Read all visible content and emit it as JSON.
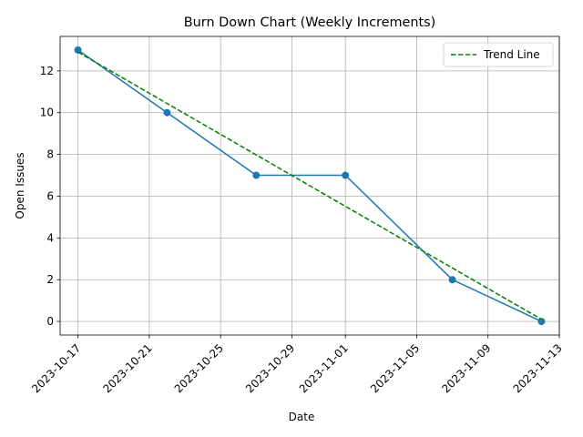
{
  "chart_data": {
    "type": "line",
    "title": "Burn Down Chart (Weekly Increments)",
    "xlabel": "Date",
    "ylabel": "Open Issues",
    "x_type": "date",
    "xlim": [
      "2023-10-16",
      "2023-11-13"
    ],
    "ylim": [
      -0.65,
      13.65
    ],
    "x_ticks": [
      "2023-10-17",
      "2023-10-21",
      "2023-10-25",
      "2023-10-29",
      "2023-11-01",
      "2023-11-05",
      "2023-11-09",
      "2023-11-13"
    ],
    "y_ticks": [
      0,
      2,
      4,
      6,
      8,
      10,
      12
    ],
    "grid": true,
    "legend_position": "top-right",
    "series": [
      {
        "style": "solid-with-markers",
        "color": "#1f77b4",
        "x": [
          "2023-10-17",
          "2023-10-22",
          "2023-10-27",
          "2023-11-01",
          "2023-11-07",
          "2023-11-12"
        ],
        "y": [
          13,
          10,
          7,
          7,
          2,
          0
        ]
      },
      {
        "name": "Trend Line",
        "style": "dashed",
        "color": "#008000",
        "x": [
          "2023-10-17",
          "2023-11-12"
        ],
        "y": [
          12.9,
          0.1
        ]
      }
    ]
  }
}
